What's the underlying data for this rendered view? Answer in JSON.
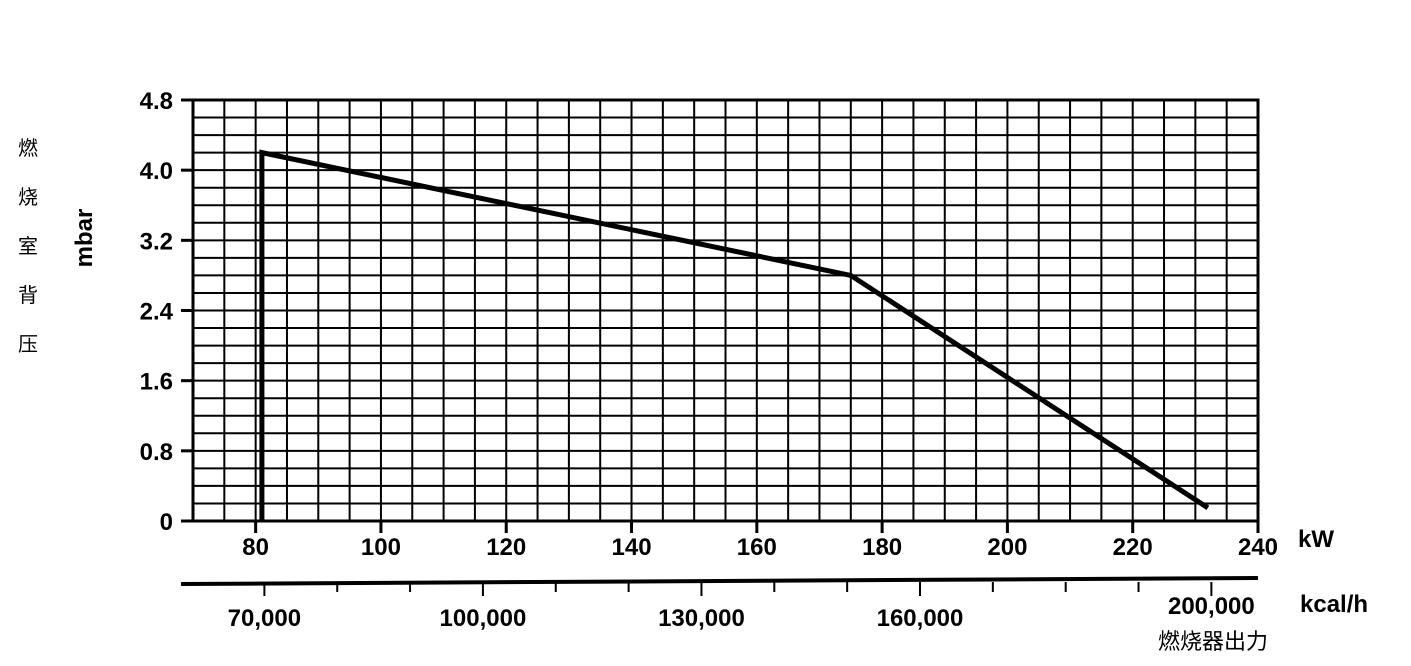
{
  "chart_data": {
    "type": "line",
    "ylabel_cn": "燃烧室背压",
    "ylabel_unit": "mbar",
    "xlabel_cn": "燃烧器出力",
    "x_unit": "kW",
    "x2_unit": "kcal/h",
    "xlim": [
      70,
      240
    ],
    "ylim": [
      0,
      4.8
    ],
    "x_ticks": [
      80,
      100,
      120,
      140,
      160,
      180,
      200,
      220,
      240
    ],
    "y_ticks": [
      0,
      0.8,
      1.6,
      2.4,
      3.2,
      4.0,
      4.8
    ],
    "y_tick_labels": [
      "0",
      "0.8",
      "1.6",
      "2.4",
      "3.2",
      "4.0",
      "4.8"
    ],
    "x2_ticks": [
      70000,
      100000,
      130000,
      160000,
      200000
    ],
    "x2_tick_labels": [
      "70,000",
      "100,000",
      "130,000",
      "160,000",
      "200,000"
    ],
    "grid": true,
    "series": [
      {
        "x": [
          81,
          81,
          175,
          232
        ],
        "y": [
          0,
          4.2,
          2.8,
          0.15
        ]
      }
    ]
  }
}
